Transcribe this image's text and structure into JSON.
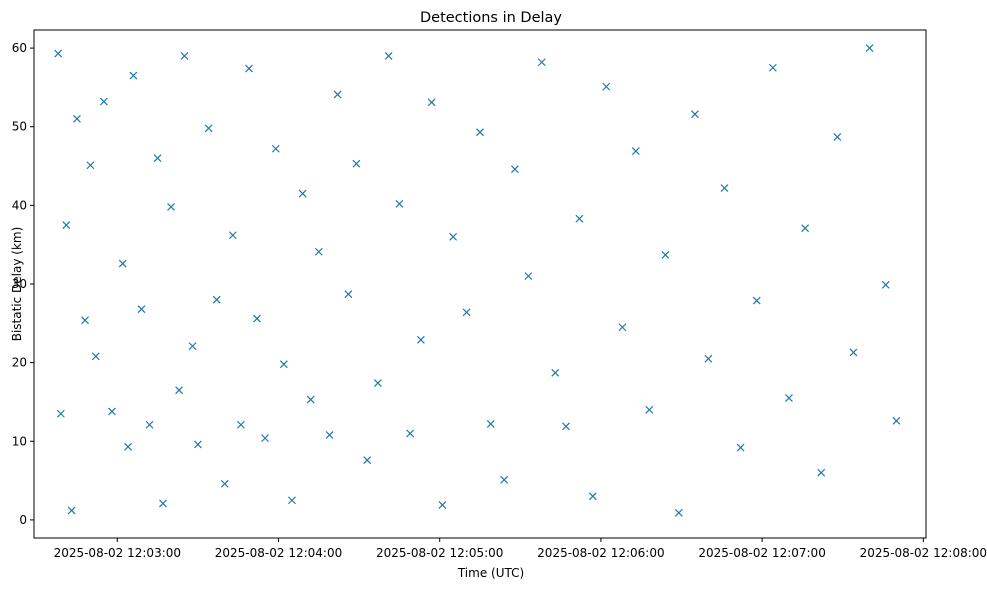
{
  "chart_data": {
    "type": "scatter",
    "title": "Detections in Delay",
    "xlabel": "Time (UTC)",
    "ylabel": "Bistatic Delay (km)",
    "x_ticks": [
      "2025-08-02 12:03:00",
      "2025-08-02 12:04:00",
      "2025-08-02 12:05:00",
      "2025-08-02 12:06:00",
      "2025-08-02 12:07:00",
      "2025-08-02 12:08:00"
    ],
    "x_start": "2025-08-02 12:02:38",
    "x_end": "2025-08-02 12:07:52",
    "y_ticks": [
      0,
      10,
      20,
      30,
      40,
      50,
      60
    ],
    "ylim": [
      -2.3,
      62.3
    ],
    "marker": "x",
    "color": "#1f77b4",
    "grid": false,
    "series": [
      {
        "x": [
          "12:02:38",
          "12:02:39",
          "12:02:41",
          "12:02:43",
          "12:02:45",
          "12:02:48",
          "12:02:50",
          "12:02:52",
          "12:02:55",
          "12:02:58",
          "12:03:02",
          "12:03:04",
          "12:03:06",
          "12:03:09",
          "12:03:12",
          "12:03:15",
          "12:03:17",
          "12:03:20",
          "12:03:23",
          "12:03:25",
          "12:03:28",
          "12:03:30",
          "12:03:34",
          "12:03:37",
          "12:03:40",
          "12:03:43",
          "12:03:46",
          "12:03:49",
          "12:03:52",
          "12:03:55",
          "12:03:59",
          "12:04:02",
          "12:04:05",
          "12:04:09",
          "12:04:12",
          "12:04:15",
          "12:04:19",
          "12:04:22",
          "12:04:26",
          "12:04:29",
          "12:04:33",
          "12:04:37",
          "12:04:41",
          "12:04:45",
          "12:04:49",
          "12:04:53",
          "12:04:57",
          "12:05:01",
          "12:05:05",
          "12:05:10",
          "12:05:15",
          "12:05:19",
          "12:05:24",
          "12:05:28",
          "12:05:33",
          "12:05:38",
          "12:05:43",
          "12:05:47",
          "12:05:52",
          "12:05:57",
          "12:06:02",
          "12:06:08",
          "12:06:13",
          "12:06:18",
          "12:06:24",
          "12:06:29",
          "12:06:35",
          "12:06:40",
          "12:06:46",
          "12:06:52",
          "12:06:58",
          "12:07:04",
          "12:07:10",
          "12:07:16",
          "12:07:22",
          "12:07:28",
          "12:07:34",
          "12:07:40",
          "12:07:46",
          "12:07:50"
        ],
        "y": [
          59.3,
          13.5,
          37.5,
          1.2,
          51.0,
          25.4,
          45.1,
          20.8,
          53.2,
          13.8,
          32.6,
          9.3,
          56.5,
          26.8,
          12.1,
          46.0,
          2.1,
          39.8,
          16.5,
          59.0,
          22.1,
          9.6,
          49.8,
          28.0,
          4.6,
          36.2,
          12.1,
          57.4,
          25.6,
          10.4,
          47.2,
          19.8,
          2.5,
          41.5,
          15.3,
          34.1,
          10.8,
          54.1,
          28.7,
          45.3,
          7.6,
          17.4,
          59.0,
          40.2,
          11.0,
          22.9,
          53.1,
          1.9,
          36.0,
          26.4,
          49.3,
          12.2,
          5.1,
          44.6,
          31.0,
          58.2,
          18.7,
          11.9,
          38.3,
          3.0,
          55.1,
          24.5,
          46.9,
          14.0,
          33.7,
          0.9,
          51.6,
          20.5,
          42.2,
          9.2,
          27.9,
          57.5,
          15.5,
          37.1,
          6.0,
          48.7,
          21.3,
          60.0,
          29.9,
          12.6
        ]
      }
    ]
  }
}
